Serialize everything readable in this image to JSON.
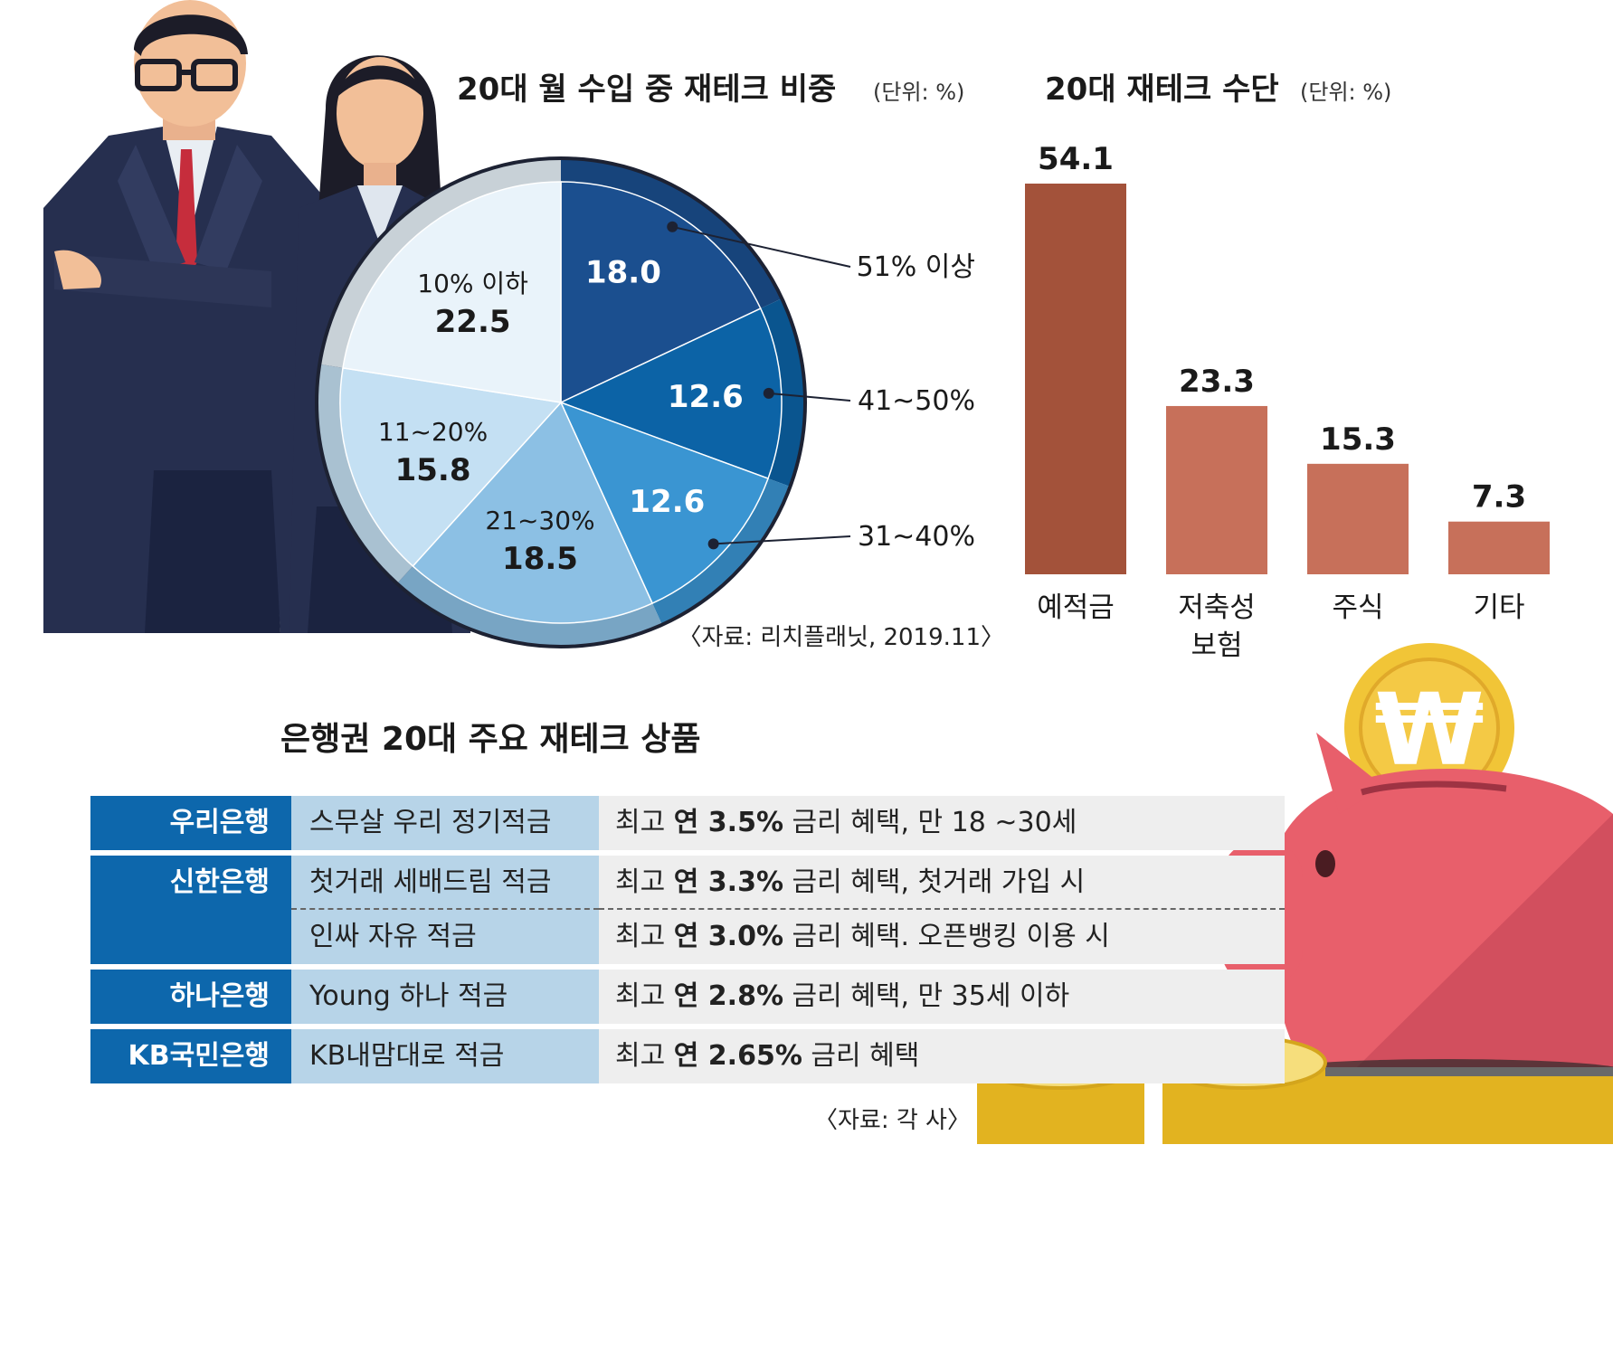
{
  "pie_title": "20대 월 수입 중 재테크 비중",
  "pie_unit": "(단위: %)",
  "bar_title": "20대 재테크 수단",
  "bar_unit": "(단위: %)",
  "pie_source": "〈자료: 리치플래닛, 2019.11〉",
  "chart_data": [
    {
      "type": "pie",
      "title": "20대 월 수입 중 재테크 비중",
      "unit": "%",
      "slices": [
        {
          "label": "51% 이상",
          "value": 18.0,
          "display": "18.0",
          "color": "#1b4f8f"
        },
        {
          "label": "41~50%",
          "value": 12.6,
          "display": "12.6",
          "color": "#0c63a6"
        },
        {
          "label": "31~40%",
          "value": 12.6,
          "display": "12.6",
          "color": "#3a95d2"
        },
        {
          "label": "21~30%",
          "value": 18.5,
          "display": "18.5",
          "color": "#8cc0e4"
        },
        {
          "label": "11~20%",
          "value": 15.8,
          "display": "15.8",
          "color": "#c4e0f3"
        },
        {
          "label": "10% 이하",
          "value": 22.5,
          "display": "22.5",
          "color": "#e9f3fa"
        }
      ]
    },
    {
      "type": "bar",
      "title": "20대 재테크 수단",
      "unit": "%",
      "categories": [
        "예적금",
        "저축성 보험",
        "주식",
        "기타"
      ],
      "category_lines": [
        [
          "예적금"
        ],
        [
          "저축성",
          "보험"
        ],
        [
          "주식"
        ],
        [
          "기타"
        ]
      ],
      "values": [
        54.1,
        23.3,
        15.3,
        7.3
      ],
      "display": [
        "54.1",
        "23.3",
        "15.3",
        "7.3"
      ],
      "colors": [
        "#a3523a",
        "#c7705a",
        "#c7705a",
        "#c7705a"
      ],
      "ylim": [
        0,
        54.1
      ]
    }
  ],
  "table": {
    "title": "은행권 20대 주요 재테크 상품",
    "rows": [
      {
        "bank": "우리은행",
        "products": [
          {
            "name": "스무살 우리 정기적금",
            "pre": "최고 ",
            "rate": "연 3.5%",
            "post": " 금리 혜택, 만 18 ~30세"
          }
        ]
      },
      {
        "bank": "신한은행",
        "products": [
          {
            "name": "첫거래 세배드림 적금",
            "pre": "최고 ",
            "rate": "연 3.3%",
            "post": " 금리 혜택, 첫거래 가입 시"
          },
          {
            "name": "인싸 자유 적금",
            "pre": "최고 ",
            "rate": "연 3.0%",
            "post": " 금리 혜택. 오픈뱅킹 이용 시"
          }
        ]
      },
      {
        "bank": "하나은행",
        "products": [
          {
            "name": "Young 하나 적금",
            "pre": "최고 ",
            "rate": "연 2.8%",
            "post": " 금리 혜택, 만 35세 이하"
          }
        ]
      },
      {
        "bank": "KB국민은행",
        "products": [
          {
            "name": "KB내맘대로 적금",
            "pre": "최고 ",
            "rate": "연 2.65%",
            "post": " 금리 혜택"
          }
        ]
      }
    ],
    "source": "〈자료: 각 사〉"
  },
  "colors": {
    "bank_cell": "#0d67ac",
    "product_cell": "#b7d4e8",
    "desc_cell": "#eeeeee",
    "pig": "#e85f6b",
    "coin": "#f1c537"
  },
  "icons": {
    "coin_symbol": "₩"
  }
}
